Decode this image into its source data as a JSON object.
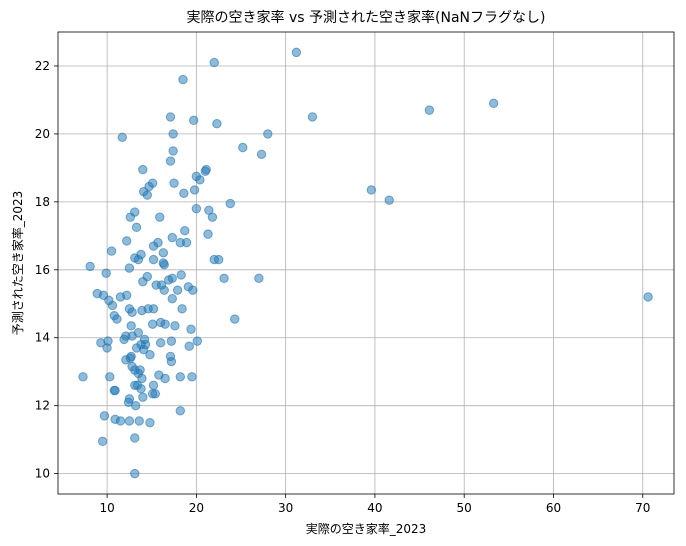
{
  "chart_data": {
    "type": "scatter",
    "title": "実際の空き家率 vs 予測された空き家率(NaNフラグなし)",
    "xlabel": "実際の空き家率_2023",
    "ylabel": "予測された空き家率_2023",
    "xlim": [
      4.5,
      73.5
    ],
    "ylim": [
      9.4,
      23.0
    ],
    "xticks": [
      10,
      20,
      30,
      40,
      50,
      60,
      70
    ],
    "yticks": [
      10,
      12,
      14,
      16,
      18,
      20,
      22
    ],
    "grid": true,
    "point_color": "#1f77b4",
    "points": [
      [
        31.2,
        22.4
      ],
      [
        22.0,
        22.1
      ],
      [
        18.5,
        21.6
      ],
      [
        53.3,
        20.9
      ],
      [
        46.1,
        20.7
      ],
      [
        17.1,
        20.5
      ],
      [
        33.0,
        20.5
      ],
      [
        19.7,
        20.4
      ],
      [
        22.3,
        20.3
      ],
      [
        28.0,
        20.0
      ],
      [
        17.4,
        20.0
      ],
      [
        11.7,
        19.9
      ],
      [
        25.2,
        19.6
      ],
      [
        17.4,
        19.5
      ],
      [
        27.3,
        19.4
      ],
      [
        17.1,
        19.2
      ],
      [
        14.0,
        18.95
      ],
      [
        21.1,
        18.95
      ],
      [
        21.0,
        18.9
      ],
      [
        20.0,
        18.75
      ],
      [
        20.4,
        18.65
      ],
      [
        15.1,
        18.55
      ],
      [
        17.5,
        18.55
      ],
      [
        14.7,
        18.45
      ],
      [
        19.8,
        18.35
      ],
      [
        39.6,
        18.35
      ],
      [
        14.1,
        18.3
      ],
      [
        18.6,
        18.25
      ],
      [
        14.5,
        18.2
      ],
      [
        41.6,
        18.05
      ],
      [
        23.8,
        17.95
      ],
      [
        20.0,
        17.8
      ],
      [
        21.4,
        17.75
      ],
      [
        13.1,
        17.7
      ],
      [
        12.6,
        17.55
      ],
      [
        15.9,
        17.55
      ],
      [
        21.8,
        17.55
      ],
      [
        13.3,
        17.25
      ],
      [
        18.7,
        17.15
      ],
      [
        21.3,
        17.05
      ],
      [
        17.3,
        16.95
      ],
      [
        12.2,
        16.85
      ],
      [
        15.7,
        16.8
      ],
      [
        18.2,
        16.8
      ],
      [
        18.9,
        16.8
      ],
      [
        15.2,
        16.7
      ],
      [
        10.5,
        16.55
      ],
      [
        16.3,
        16.5
      ],
      [
        13.8,
        16.45
      ],
      [
        13.1,
        16.35
      ],
      [
        13.5,
        16.3
      ],
      [
        15.2,
        16.3
      ],
      [
        22.0,
        16.3
      ],
      [
        22.5,
        16.3
      ],
      [
        16.3,
        16.2
      ],
      [
        16.4,
        16.15
      ],
      [
        8.1,
        16.1
      ],
      [
        12.5,
        16.05
      ],
      [
        9.9,
        15.9
      ],
      [
        18.3,
        15.85
      ],
      [
        27.0,
        15.75
      ],
      [
        23.1,
        15.75
      ],
      [
        14.5,
        15.8
      ],
      [
        17.3,
        15.75
      ],
      [
        16.9,
        15.7
      ],
      [
        14.0,
        15.65
      ],
      [
        15.5,
        15.55
      ],
      [
        16.1,
        15.55
      ],
      [
        19.1,
        15.5
      ],
      [
        19.6,
        15.4
      ],
      [
        16.4,
        15.4
      ],
      [
        17.9,
        15.4
      ],
      [
        70.6,
        15.2
      ],
      [
        11.5,
        15.2
      ],
      [
        8.9,
        15.3
      ],
      [
        9.6,
        15.25
      ],
      [
        12.2,
        15.25
      ],
      [
        17.3,
        15.15
      ],
      [
        10.2,
        15.1
      ],
      [
        10.6,
        14.95
      ],
      [
        12.5,
        14.85
      ],
      [
        13.9,
        14.8
      ],
      [
        14.6,
        14.85
      ],
      [
        15.2,
        14.85
      ],
      [
        18.4,
        14.85
      ],
      [
        12.8,
        14.75
      ],
      [
        10.8,
        14.65
      ],
      [
        11.1,
        14.55
      ],
      [
        24.3,
        14.55
      ],
      [
        16.0,
        14.45
      ],
      [
        15.1,
        14.4
      ],
      [
        16.5,
        14.4
      ],
      [
        17.6,
        14.35
      ],
      [
        12.7,
        14.35
      ],
      [
        19.4,
        14.25
      ],
      [
        13.5,
        14.15
      ],
      [
        12.1,
        14.05
      ],
      [
        12.8,
        14.05
      ],
      [
        14.2,
        13.95
      ],
      [
        11.9,
        13.95
      ],
      [
        10.1,
        13.9
      ],
      [
        9.3,
        13.85
      ],
      [
        17.2,
        13.9
      ],
      [
        20.1,
        13.9
      ],
      [
        16.0,
        13.85
      ],
      [
        13.8,
        13.8
      ],
      [
        14.3,
        13.8
      ],
      [
        19.2,
        13.75
      ],
      [
        10.0,
        13.7
      ],
      [
        13.3,
        13.7
      ],
      [
        14.1,
        13.65
      ],
      [
        14.8,
        13.5
      ],
      [
        17.1,
        13.45
      ],
      [
        12.7,
        13.45
      ],
      [
        12.1,
        13.35
      ],
      [
        12.6,
        13.4
      ],
      [
        17.2,
        13.3
      ],
      [
        12.8,
        13.15
      ],
      [
        13.1,
        13.05
      ],
      [
        13.7,
        13.05
      ],
      [
        13.5,
        12.95
      ],
      [
        15.8,
        12.9
      ],
      [
        18.2,
        12.85
      ],
      [
        19.5,
        12.85
      ],
      [
        7.3,
        12.85
      ],
      [
        10.3,
        12.85
      ],
      [
        13.9,
        12.8
      ],
      [
        16.5,
        12.8
      ],
      [
        13.4,
        12.6
      ],
      [
        13.1,
        12.6
      ],
      [
        15.2,
        12.6
      ],
      [
        13.8,
        12.5
      ],
      [
        10.8,
        12.45
      ],
      [
        10.9,
        12.45
      ],
      [
        15.1,
        12.35
      ],
      [
        15.4,
        12.35
      ],
      [
        12.5,
        12.2
      ],
      [
        14.0,
        12.25
      ],
      [
        12.4,
        12.1
      ],
      [
        13.2,
        12.0
      ],
      [
        18.2,
        11.85
      ],
      [
        9.7,
        11.7
      ],
      [
        10.9,
        11.6
      ],
      [
        11.5,
        11.55
      ],
      [
        12.5,
        11.55
      ],
      [
        13.6,
        11.55
      ],
      [
        14.8,
        11.5
      ],
      [
        13.1,
        11.05
      ],
      [
        9.5,
        10.95
      ],
      [
        13.1,
        10.0
      ]
    ]
  }
}
